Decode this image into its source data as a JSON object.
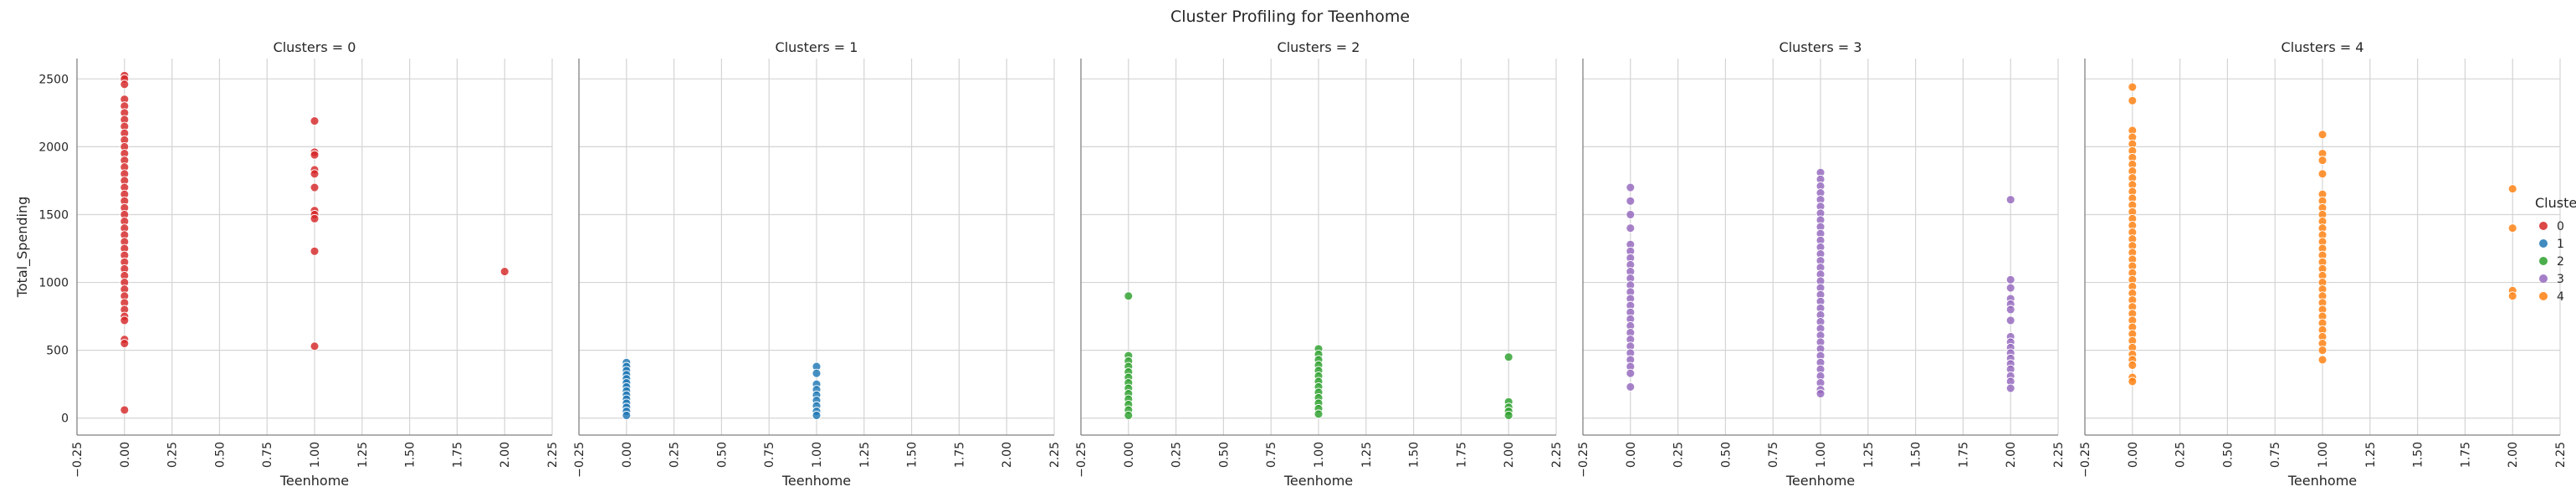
{
  "figure_title": "Cluster Profiling for Teenhome",
  "chart_data": {
    "type": "scatter",
    "title": "Cluster Profiling for Teenhome",
    "xlabel": "Teenhome",
    "ylabel": "Total_Spending",
    "xlim": [
      -0.25,
      2.25
    ],
    "ylim": [
      -125,
      2650
    ],
    "x_ticks": [
      "−0.25",
      "0.00",
      "0.25",
      "0.50",
      "0.75",
      "1.00",
      "1.25",
      "1.50",
      "1.75",
      "2.00",
      "2.25"
    ],
    "y_ticks": [
      "0",
      "500",
      "1000",
      "1500",
      "2000",
      "2500"
    ],
    "grid": true,
    "legend": {
      "title": "Clusters",
      "placement": "right",
      "entries": [
        {
          "label": "0",
          "color": "#d62728"
        },
        {
          "label": "1",
          "color": "#1f77b4"
        },
        {
          "label": "2",
          "color": "#2ca02c"
        },
        {
          "label": "3",
          "color": "#9467bd"
        },
        {
          "label": "4",
          "color": "#ff7f0e"
        }
      ]
    },
    "panels": [
      {
        "title": "Clusters = 0",
        "color": "#d62728",
        "points": [
          {
            "x": 0,
            "y": 2525
          },
          {
            "x": 0,
            "y": 2500
          },
          {
            "x": 0,
            "y": 2460
          },
          {
            "x": 0,
            "y": 2350
          },
          {
            "x": 0,
            "y": 2300
          },
          {
            "x": 0,
            "y": 2250
          },
          {
            "x": 0,
            "y": 2200
          },
          {
            "x": 0,
            "y": 2150
          },
          {
            "x": 0,
            "y": 2100
          },
          {
            "x": 0,
            "y": 2050
          },
          {
            "x": 0,
            "y": 2000
          },
          {
            "x": 0,
            "y": 1950
          },
          {
            "x": 0,
            "y": 1900
          },
          {
            "x": 0,
            "y": 1850
          },
          {
            "x": 0,
            "y": 1800
          },
          {
            "x": 0,
            "y": 1750
          },
          {
            "x": 0,
            "y": 1700
          },
          {
            "x": 0,
            "y": 1650
          },
          {
            "x": 0,
            "y": 1600
          },
          {
            "x": 0,
            "y": 1550
          },
          {
            "x": 0,
            "y": 1500
          },
          {
            "x": 0,
            "y": 1450
          },
          {
            "x": 0,
            "y": 1400
          },
          {
            "x": 0,
            "y": 1350
          },
          {
            "x": 0,
            "y": 1300
          },
          {
            "x": 0,
            "y": 1250
          },
          {
            "x": 0,
            "y": 1200
          },
          {
            "x": 0,
            "y": 1150
          },
          {
            "x": 0,
            "y": 1100
          },
          {
            "x": 0,
            "y": 1050
          },
          {
            "x": 0,
            "y": 1000
          },
          {
            "x": 0,
            "y": 950
          },
          {
            "x": 0,
            "y": 900
          },
          {
            "x": 0,
            "y": 850
          },
          {
            "x": 0,
            "y": 800
          },
          {
            "x": 0,
            "y": 750
          },
          {
            "x": 0,
            "y": 720
          },
          {
            "x": 0,
            "y": 580
          },
          {
            "x": 0,
            "y": 550
          },
          {
            "x": 0,
            "y": 60
          },
          {
            "x": 1,
            "y": 2190
          },
          {
            "x": 1,
            "y": 1960
          },
          {
            "x": 1,
            "y": 1940
          },
          {
            "x": 1,
            "y": 1830
          },
          {
            "x": 1,
            "y": 1800
          },
          {
            "x": 1,
            "y": 1700
          },
          {
            "x": 1,
            "y": 1530
          },
          {
            "x": 1,
            "y": 1500
          },
          {
            "x": 1,
            "y": 1470
          },
          {
            "x": 1,
            "y": 1230
          },
          {
            "x": 1,
            "y": 530
          },
          {
            "x": 2,
            "y": 1080
          }
        ]
      },
      {
        "title": "Clusters = 1",
        "color": "#1f77b4",
        "points": [
          {
            "x": 0,
            "y": 410
          },
          {
            "x": 0,
            "y": 380
          },
          {
            "x": 0,
            "y": 350
          },
          {
            "x": 0,
            "y": 320
          },
          {
            "x": 0,
            "y": 290
          },
          {
            "x": 0,
            "y": 260
          },
          {
            "x": 0,
            "y": 230
          },
          {
            "x": 0,
            "y": 200
          },
          {
            "x": 0,
            "y": 170
          },
          {
            "x": 0,
            "y": 140
          },
          {
            "x": 0,
            "y": 110
          },
          {
            "x": 0,
            "y": 80
          },
          {
            "x": 0,
            "y": 50
          },
          {
            "x": 0,
            "y": 20
          },
          {
            "x": 1,
            "y": 380
          },
          {
            "x": 1,
            "y": 330
          },
          {
            "x": 1,
            "y": 250
          },
          {
            "x": 1,
            "y": 210
          },
          {
            "x": 1,
            "y": 170
          },
          {
            "x": 1,
            "y": 130
          },
          {
            "x": 1,
            "y": 90
          },
          {
            "x": 1,
            "y": 50
          },
          {
            "x": 1,
            "y": 20
          }
        ]
      },
      {
        "title": "Clusters = 2",
        "color": "#2ca02c",
        "points": [
          {
            "x": 0,
            "y": 900
          },
          {
            "x": 0,
            "y": 460
          },
          {
            "x": 0,
            "y": 420
          },
          {
            "x": 0,
            "y": 380
          },
          {
            "x": 0,
            "y": 340
          },
          {
            "x": 0,
            "y": 300
          },
          {
            "x": 0,
            "y": 260
          },
          {
            "x": 0,
            "y": 220
          },
          {
            "x": 0,
            "y": 180
          },
          {
            "x": 0,
            "y": 140
          },
          {
            "x": 0,
            "y": 100
          },
          {
            "x": 0,
            "y": 60
          },
          {
            "x": 0,
            "y": 20
          },
          {
            "x": 1,
            "y": 510
          },
          {
            "x": 1,
            "y": 470
          },
          {
            "x": 1,
            "y": 430
          },
          {
            "x": 1,
            "y": 390
          },
          {
            "x": 1,
            "y": 350
          },
          {
            "x": 1,
            "y": 310
          },
          {
            "x": 1,
            "y": 270
          },
          {
            "x": 1,
            "y": 230
          },
          {
            "x": 1,
            "y": 190
          },
          {
            "x": 1,
            "y": 150
          },
          {
            "x": 1,
            "y": 110
          },
          {
            "x": 1,
            "y": 70
          },
          {
            "x": 1,
            "y": 30
          },
          {
            "x": 2,
            "y": 450
          },
          {
            "x": 2,
            "y": 120
          },
          {
            "x": 2,
            "y": 80
          },
          {
            "x": 2,
            "y": 50
          },
          {
            "x": 2,
            "y": 20
          }
        ]
      },
      {
        "title": "Clusters = 3",
        "color": "#9467bd",
        "points": [
          {
            "x": 0,
            "y": 1700
          },
          {
            "x": 0,
            "y": 1600
          },
          {
            "x": 0,
            "y": 1500
          },
          {
            "x": 0,
            "y": 1400
          },
          {
            "x": 0,
            "y": 1280
          },
          {
            "x": 0,
            "y": 1230
          },
          {
            "x": 0,
            "y": 1180
          },
          {
            "x": 0,
            "y": 1130
          },
          {
            "x": 0,
            "y": 1080
          },
          {
            "x": 0,
            "y": 1030
          },
          {
            "x": 0,
            "y": 980
          },
          {
            "x": 0,
            "y": 930
          },
          {
            "x": 0,
            "y": 880
          },
          {
            "x": 0,
            "y": 830
          },
          {
            "x": 0,
            "y": 780
          },
          {
            "x": 0,
            "y": 730
          },
          {
            "x": 0,
            "y": 680
          },
          {
            "x": 0,
            "y": 630
          },
          {
            "x": 0,
            "y": 580
          },
          {
            "x": 0,
            "y": 530
          },
          {
            "x": 0,
            "y": 480
          },
          {
            "x": 0,
            "y": 430
          },
          {
            "x": 0,
            "y": 380
          },
          {
            "x": 0,
            "y": 330
          },
          {
            "x": 0,
            "y": 230
          },
          {
            "x": 1,
            "y": 1810
          },
          {
            "x": 1,
            "y": 1760
          },
          {
            "x": 1,
            "y": 1710
          },
          {
            "x": 1,
            "y": 1660
          },
          {
            "x": 1,
            "y": 1610
          },
          {
            "x": 1,
            "y": 1560
          },
          {
            "x": 1,
            "y": 1510
          },
          {
            "x": 1,
            "y": 1460
          },
          {
            "x": 1,
            "y": 1410
          },
          {
            "x": 1,
            "y": 1360
          },
          {
            "x": 1,
            "y": 1310
          },
          {
            "x": 1,
            "y": 1260
          },
          {
            "x": 1,
            "y": 1210
          },
          {
            "x": 1,
            "y": 1160
          },
          {
            "x": 1,
            "y": 1110
          },
          {
            "x": 1,
            "y": 1060
          },
          {
            "x": 1,
            "y": 1010
          },
          {
            "x": 1,
            "y": 960
          },
          {
            "x": 1,
            "y": 910
          },
          {
            "x": 1,
            "y": 860
          },
          {
            "x": 1,
            "y": 810
          },
          {
            "x": 1,
            "y": 760
          },
          {
            "x": 1,
            "y": 710
          },
          {
            "x": 1,
            "y": 660
          },
          {
            "x": 1,
            "y": 610
          },
          {
            "x": 1,
            "y": 560
          },
          {
            "x": 1,
            "y": 510
          },
          {
            "x": 1,
            "y": 460
          },
          {
            "x": 1,
            "y": 410
          },
          {
            "x": 1,
            "y": 360
          },
          {
            "x": 1,
            "y": 310
          },
          {
            "x": 1,
            "y": 260
          },
          {
            "x": 1,
            "y": 210
          },
          {
            "x": 1,
            "y": 180
          },
          {
            "x": 2,
            "y": 1610
          },
          {
            "x": 2,
            "y": 1020
          },
          {
            "x": 2,
            "y": 960
          },
          {
            "x": 2,
            "y": 880
          },
          {
            "x": 2,
            "y": 840
          },
          {
            "x": 2,
            "y": 800
          },
          {
            "x": 2,
            "y": 720
          },
          {
            "x": 2,
            "y": 600
          },
          {
            "x": 2,
            "y": 560
          },
          {
            "x": 2,
            "y": 520
          },
          {
            "x": 2,
            "y": 480
          },
          {
            "x": 2,
            "y": 440
          },
          {
            "x": 2,
            "y": 400
          },
          {
            "x": 2,
            "y": 360
          },
          {
            "x": 2,
            "y": 310
          },
          {
            "x": 2,
            "y": 270
          },
          {
            "x": 2,
            "y": 220
          }
        ]
      },
      {
        "title": "Clusters = 4",
        "color": "#ff7f0e",
        "points": [
          {
            "x": 0,
            "y": 2440
          },
          {
            "x": 0,
            "y": 2340
          },
          {
            "x": 0,
            "y": 2120
          },
          {
            "x": 0,
            "y": 2070
          },
          {
            "x": 0,
            "y": 2020
          },
          {
            "x": 0,
            "y": 1970
          },
          {
            "x": 0,
            "y": 1920
          },
          {
            "x": 0,
            "y": 1870
          },
          {
            "x": 0,
            "y": 1820
          },
          {
            "x": 0,
            "y": 1770
          },
          {
            "x": 0,
            "y": 1720
          },
          {
            "x": 0,
            "y": 1670
          },
          {
            "x": 0,
            "y": 1620
          },
          {
            "x": 0,
            "y": 1570
          },
          {
            "x": 0,
            "y": 1520
          },
          {
            "x": 0,
            "y": 1470
          },
          {
            "x": 0,
            "y": 1420
          },
          {
            "x": 0,
            "y": 1370
          },
          {
            "x": 0,
            "y": 1320
          },
          {
            "x": 0,
            "y": 1270
          },
          {
            "x": 0,
            "y": 1220
          },
          {
            "x": 0,
            "y": 1170
          },
          {
            "x": 0,
            "y": 1120
          },
          {
            "x": 0,
            "y": 1070
          },
          {
            "x": 0,
            "y": 1020
          },
          {
            "x": 0,
            "y": 970
          },
          {
            "x": 0,
            "y": 920
          },
          {
            "x": 0,
            "y": 870
          },
          {
            "x": 0,
            "y": 820
          },
          {
            "x": 0,
            "y": 770
          },
          {
            "x": 0,
            "y": 720
          },
          {
            "x": 0,
            "y": 670
          },
          {
            "x": 0,
            "y": 620
          },
          {
            "x": 0,
            "y": 570
          },
          {
            "x": 0,
            "y": 520
          },
          {
            "x": 0,
            "y": 470
          },
          {
            "x": 0,
            "y": 430
          },
          {
            "x": 0,
            "y": 390
          },
          {
            "x": 0,
            "y": 300
          },
          {
            "x": 0,
            "y": 270
          },
          {
            "x": 1,
            "y": 2090
          },
          {
            "x": 1,
            "y": 1950
          },
          {
            "x": 1,
            "y": 1900
          },
          {
            "x": 1,
            "y": 1800
          },
          {
            "x": 1,
            "y": 1650
          },
          {
            "x": 1,
            "y": 1600
          },
          {
            "x": 1,
            "y": 1550
          },
          {
            "x": 1,
            "y": 1500
          },
          {
            "x": 1,
            "y": 1450
          },
          {
            "x": 1,
            "y": 1400
          },
          {
            "x": 1,
            "y": 1350
          },
          {
            "x": 1,
            "y": 1300
          },
          {
            "x": 1,
            "y": 1250
          },
          {
            "x": 1,
            "y": 1200
          },
          {
            "x": 1,
            "y": 1150
          },
          {
            "x": 1,
            "y": 1100
          },
          {
            "x": 1,
            "y": 1050
          },
          {
            "x": 1,
            "y": 1000
          },
          {
            "x": 1,
            "y": 950
          },
          {
            "x": 1,
            "y": 900
          },
          {
            "x": 1,
            "y": 850
          },
          {
            "x": 1,
            "y": 800
          },
          {
            "x": 1,
            "y": 750
          },
          {
            "x": 1,
            "y": 700
          },
          {
            "x": 1,
            "y": 650
          },
          {
            "x": 1,
            "y": 600
          },
          {
            "x": 1,
            "y": 550
          },
          {
            "x": 1,
            "y": 500
          },
          {
            "x": 1,
            "y": 430
          },
          {
            "x": 2,
            "y": 1690
          },
          {
            "x": 2,
            "y": 1400
          },
          {
            "x": 2,
            "y": 940
          },
          {
            "x": 2,
            "y": 900
          }
        ]
      }
    ]
  }
}
